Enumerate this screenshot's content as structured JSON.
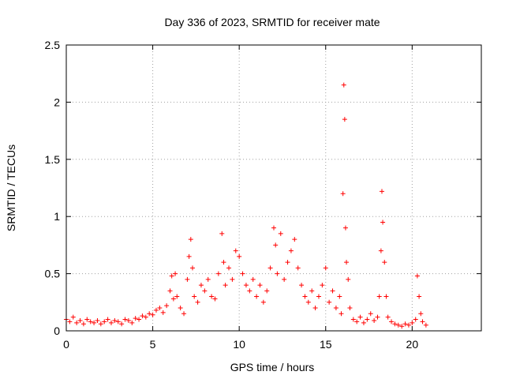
{
  "chart_data": {
    "type": "scatter",
    "title": "Day 336 of 2023, SRMTID for receiver mate",
    "xlabel": "GPS time / hours",
    "ylabel": "SRMTID / TECUs",
    "xlim": [
      0,
      24
    ],
    "ylim": [
      0,
      2.5
    ],
    "xticks": [
      0,
      5,
      10,
      15,
      20
    ],
    "yticks": [
      0,
      0.5,
      1,
      1.5,
      2,
      2.5
    ],
    "xtick_labels": [
      "0",
      "5",
      "10",
      "15",
      "20"
    ],
    "ytick_labels": [
      "0",
      "0.5",
      "1",
      "1.5",
      "2",
      "2.5"
    ],
    "grid": true,
    "marker": "plus",
    "color": "#ff0000",
    "series": [
      {
        "name": "mate",
        "x": [
          0.0,
          0.2,
          0.4,
          0.6,
          0.8,
          1.0,
          1.2,
          1.4,
          1.6,
          1.8,
          2.0,
          2.2,
          2.4,
          2.6,
          2.8,
          3.0,
          3.2,
          3.4,
          3.6,
          3.8,
          4.0,
          4.2,
          4.4,
          4.6,
          4.8,
          5.0,
          5.2,
          5.4,
          5.6,
          5.8,
          6.0,
          6.1,
          6.2,
          6.3,
          6.4,
          6.6,
          6.8,
          7.0,
          7.1,
          7.2,
          7.3,
          7.4,
          7.6,
          7.8,
          8.0,
          8.2,
          8.4,
          8.6,
          8.8,
          9.0,
          9.1,
          9.2,
          9.4,
          9.6,
          9.8,
          10.0,
          10.2,
          10.4,
          10.6,
          10.8,
          11.0,
          11.2,
          11.4,
          11.6,
          11.8,
          12.0,
          12.1,
          12.2,
          12.4,
          12.6,
          12.8,
          13.0,
          13.2,
          13.4,
          13.6,
          13.8,
          14.0,
          14.2,
          14.4,
          14.6,
          14.8,
          15.0,
          15.2,
          15.4,
          15.6,
          15.8,
          15.9,
          16.0,
          16.05,
          16.1,
          16.15,
          16.2,
          16.3,
          16.4,
          16.6,
          16.8,
          17.0,
          17.2,
          17.4,
          17.6,
          17.8,
          18.0,
          18.1,
          18.2,
          18.25,
          18.3,
          18.4,
          18.5,
          18.6,
          18.8,
          19.0,
          19.2,
          19.4,
          19.6,
          19.8,
          20.0,
          20.2,
          20.3,
          20.4,
          20.5,
          20.6,
          20.8
        ],
        "y": [
          0.1,
          0.08,
          0.12,
          0.07,
          0.09,
          0.06,
          0.1,
          0.08,
          0.07,
          0.09,
          0.06,
          0.08,
          0.1,
          0.07,
          0.09,
          0.08,
          0.06,
          0.1,
          0.09,
          0.07,
          0.11,
          0.1,
          0.13,
          0.12,
          0.15,
          0.14,
          0.18,
          0.2,
          0.16,
          0.22,
          0.35,
          0.48,
          0.28,
          0.5,
          0.3,
          0.2,
          0.15,
          0.45,
          0.65,
          0.8,
          0.55,
          0.3,
          0.25,
          0.4,
          0.35,
          0.45,
          0.3,
          0.28,
          0.5,
          0.85,
          0.6,
          0.4,
          0.55,
          0.45,
          0.7,
          0.65,
          0.5,
          0.4,
          0.35,
          0.45,
          0.3,
          0.4,
          0.25,
          0.35,
          0.55,
          0.9,
          0.75,
          0.5,
          0.85,
          0.45,
          0.6,
          0.7,
          0.8,
          0.55,
          0.4,
          0.3,
          0.25,
          0.35,
          0.2,
          0.3,
          0.4,
          0.55,
          0.25,
          0.35,
          0.2,
          0.3,
          0.15,
          1.2,
          2.15,
          1.85,
          0.9,
          0.6,
          0.45,
          0.2,
          0.1,
          0.08,
          0.12,
          0.07,
          0.1,
          0.15,
          0.09,
          0.12,
          0.3,
          0.7,
          1.22,
          0.95,
          0.6,
          0.3,
          0.12,
          0.08,
          0.06,
          0.05,
          0.04,
          0.06,
          0.05,
          0.07,
          0.1,
          0.48,
          0.3,
          0.15,
          0.08,
          0.05
        ]
      }
    ]
  }
}
